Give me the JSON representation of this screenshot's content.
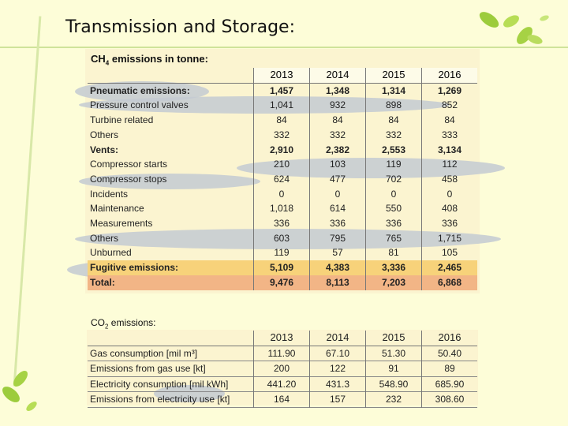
{
  "title": "Transmission and Storage:",
  "ch4": {
    "heading_prefix": "CH",
    "heading_sub": "4",
    "heading_suffix": " emissions in tonne:",
    "years": [
      "2013",
      "2014",
      "2015",
      "2016"
    ],
    "rows": [
      {
        "label": "Pneumatic emissions:",
        "values": [
          "1,457",
          "1,348",
          "1,314",
          "1,269"
        ],
        "bold": true
      },
      {
        "label": "Pressure control valves",
        "values": [
          "1,041",
          "932",
          "898",
          "852"
        ]
      },
      {
        "label": "Turbine related",
        "values": [
          "84",
          "84",
          "84",
          "84"
        ]
      },
      {
        "label": "Others",
        "values": [
          "332",
          "332",
          "332",
          "333"
        ]
      },
      {
        "label": "Vents:",
        "values": [
          "2,910",
          "2,382",
          "2,553",
          "3,134"
        ],
        "bold": true
      },
      {
        "label": "Compressor starts",
        "values": [
          "210",
          "103",
          "119",
          "112"
        ]
      },
      {
        "label": "Compressor stops",
        "values": [
          "624",
          "477",
          "702",
          "458"
        ]
      },
      {
        "label": "Incidents",
        "values": [
          "0",
          "0",
          "0",
          "0"
        ]
      },
      {
        "label": "Maintenance",
        "values": [
          "1,018",
          "614",
          "550",
          "408"
        ]
      },
      {
        "label": "Measurements",
        "values": [
          "336",
          "336",
          "336",
          "336"
        ]
      },
      {
        "label": "Others",
        "values": [
          "603",
          "795",
          "765",
          "1,715"
        ]
      },
      {
        "label": "Unburned",
        "values": [
          "119",
          "57",
          "81",
          "105"
        ]
      },
      {
        "label": "Fugitive emissions:",
        "values": [
          "5,109",
          "4,383",
          "3,336",
          "2,465"
        ],
        "bold": true,
        "style": "fugitive"
      },
      {
        "label": "Total:",
        "values": [
          "9,476",
          "8,113",
          "7,203",
          "6,868"
        ],
        "bold": true,
        "style": "total"
      }
    ]
  },
  "co2": {
    "heading_prefix": "CO",
    "heading_sub": "2",
    "heading_suffix": " emissions:",
    "years": [
      "2013",
      "2014",
      "2015",
      "2016"
    ],
    "rows": [
      {
        "label": "Gas consumption [mil m³]",
        "values": [
          "111.90",
          "67.10",
          "51.30",
          "50.40"
        ]
      },
      {
        "label": "Emissions from gas use [kt]",
        "values": [
          "200",
          "122",
          "91",
          "89"
        ]
      },
      {
        "label": "Electricity consumption [mil kWh]",
        "values": [
          "441.20",
          "431.3",
          "548.90",
          "685.90"
        ]
      },
      {
        "label": "Emissions from electricity use [kt]",
        "values": [
          "164",
          "157",
          "232",
          "308.60"
        ]
      }
    ]
  },
  "colors": {
    "background": "#fdfdd8",
    "fugitive_row": "#f7d27a",
    "total_row": "#f2b586",
    "leaf_green": "#9ccc3c"
  }
}
